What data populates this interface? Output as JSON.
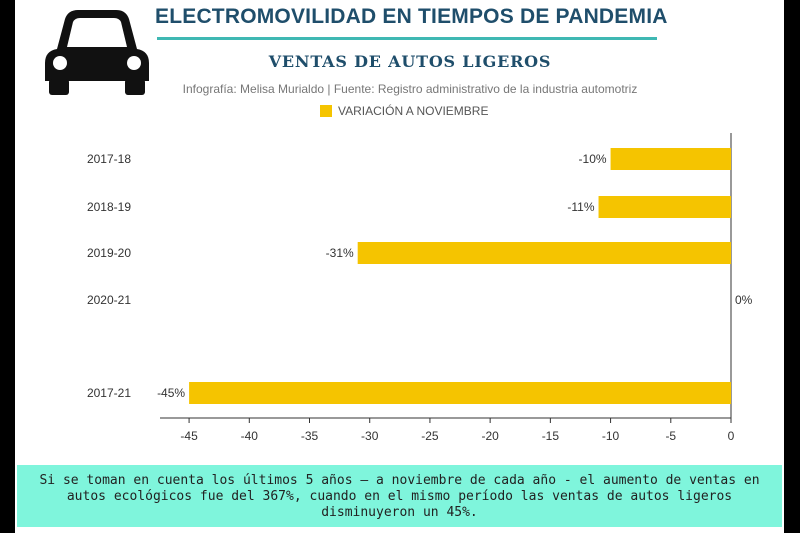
{
  "header": {
    "main_title": "ELECTROMOVILIDAD EN TIEMPOS DE PANDEMIA",
    "icon": "car-icon"
  },
  "colors": {
    "bar": "#f5c400",
    "title": "#1f4e6b",
    "rule": "#3fb8b3",
    "note_bg": "#7ff5dc"
  },
  "chart_data": {
    "type": "bar",
    "orientation": "horizontal",
    "title": "VENTAS DE AUTOS LIGEROS",
    "subtitle": "Infografía: Melisa Murialdo | Fuente: Registro administrativo de la industria automotriz",
    "categories": [
      "2017-18",
      "2018-19",
      "2019-20",
      "2020-21",
      "2017-21"
    ],
    "series": [
      {
        "name": "VARIACIÓN A NOVIEMBRE",
        "values": [
          -10,
          -11,
          -31,
          0,
          -45
        ],
        "labels": [
          "-10%",
          "-11%",
          "-31%",
          "0%",
          "-45%"
        ]
      }
    ],
    "xlim": [
      -47,
      0
    ],
    "xticks": [
      -45,
      -40,
      -35,
      -30,
      -25,
      -20,
      -15,
      -10,
      -5,
      0
    ],
    "legend": "top",
    "grid": false
  },
  "note": {
    "text": "Si se toman en cuenta los últimos 5 años – a noviembre de cada año - el aumento de ventas en autos ecológicos fue del 367%, cuando en el mismo período las ventas de autos ligeros disminuyeron un 45%."
  }
}
